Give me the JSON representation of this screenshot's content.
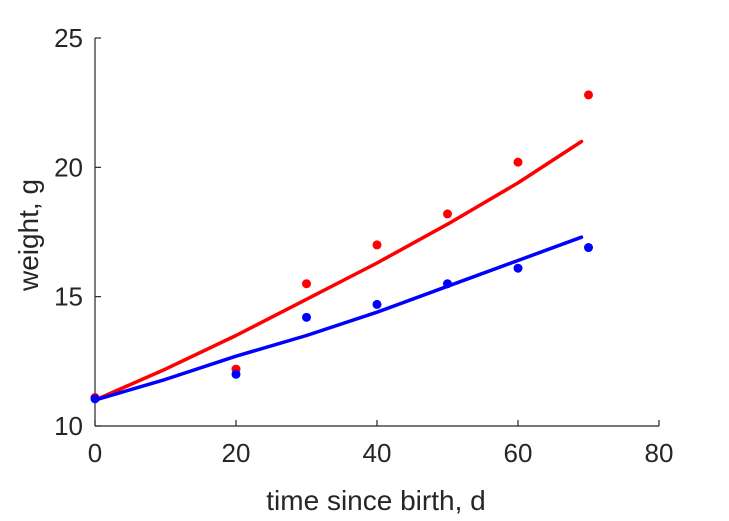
{
  "chart_data": {
    "type": "scatter",
    "title": "",
    "xlabel": "time since birth, d",
    "ylabel": "weight, g",
    "xlim": [
      0,
      80
    ],
    "ylim": [
      10,
      25
    ],
    "xticks": [
      0,
      20,
      40,
      60,
      80
    ],
    "yticks": [
      10,
      15,
      20,
      25
    ],
    "xtick_labels": [
      "0",
      "20",
      "40",
      "60",
      "80"
    ],
    "ytick_labels": [
      "10",
      "15",
      "20",
      "25"
    ],
    "grid": false,
    "legend": "none",
    "series": [
      {
        "color": "#ff0000",
        "points": {
          "x": [
            0,
            20,
            30,
            40,
            50,
            60,
            70
          ],
          "y": [
            11.1,
            12.2,
            15.5,
            17.0,
            18.2,
            20.2,
            22.8
          ]
        },
        "fit": {
          "x": [
            0,
            10,
            20,
            30,
            40,
            50,
            60,
            69
          ],
          "y": [
            11.0,
            12.2,
            13.5,
            14.9,
            16.3,
            17.8,
            19.4,
            21.0
          ]
        }
      },
      {
        "color": "#0000ff",
        "points": {
          "x": [
            0,
            20,
            30,
            40,
            50,
            60,
            70
          ],
          "y": [
            11.05,
            12.0,
            14.2,
            14.7,
            15.5,
            16.1,
            16.9
          ]
        },
        "fit": {
          "x": [
            0,
            10,
            20,
            30,
            40,
            50,
            60,
            69
          ],
          "y": [
            11.0,
            11.8,
            12.7,
            13.5,
            14.4,
            15.4,
            16.4,
            17.3
          ]
        }
      }
    ]
  }
}
